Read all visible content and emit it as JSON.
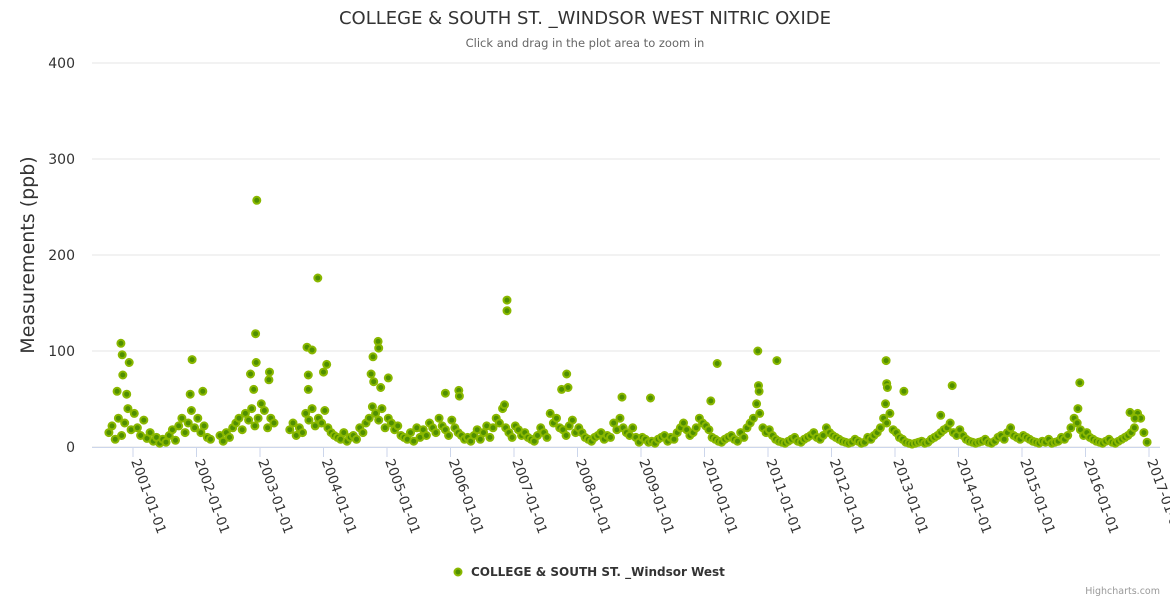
{
  "chart_data": {
    "type": "scatter",
    "title": "COLLEGE & SOUTH ST. _WINDSOR WEST NITRIC OXIDE",
    "subtitle": "Click and drag in the plot area to zoom in",
    "xlabel": "",
    "ylabel": "Measurements (ppb)",
    "ylim": [
      0,
      400
    ],
    "xlim": [
      2000.4,
      2017.2
    ],
    "yticks": [
      "0",
      "100",
      "200",
      "300",
      "400"
    ],
    "xticks": [
      "2001-01-01",
      "2002-01-01",
      "2003-01-01",
      "2004-01-01",
      "2005-01-01",
      "2006-01-01",
      "2007-01-01",
      "2008-01-01",
      "2009-01-01",
      "2010-01-01",
      "2011-01-01",
      "2012-01-01",
      "2013-01-01",
      "2014-01-01",
      "2015-01-01",
      "2016-01-01",
      "2017-01-01"
    ],
    "grid": true,
    "legend": {
      "position": "bottom-center",
      "entries": [
        "COLLEGE & SOUTH ST. _Windsor West"
      ]
    },
    "credits": "Highcharts.com",
    "colors": {
      "marker_fill": "#4f8f00",
      "marker_stroke": "#8ab800",
      "grid": "#e6e6e6",
      "axis": "#ccd6eb"
    },
    "series": [
      {
        "name": "COLLEGE & SOUTH ST. _Windsor West",
        "regular": {
          "x_start": 2000.62,
          "x_step": 0.05,
          "values": [
            15,
            22,
            8,
            30,
            12,
            25,
            40,
            18,
            35,
            20,
            12,
            28,
            9,
            15,
            6,
            10,
            4,
            8,
            5,
            12,
            18,
            7,
            22,
            30,
            15,
            25,
            38,
            20,
            30,
            15,
            22,
            10,
            8,
            null,
            null,
            12,
            6,
            15,
            10,
            20,
            25,
            30,
            18,
            35,
            28,
            40,
            22,
            30,
            45,
            38,
            20,
            30,
            25,
            null,
            null,
            null,
            null,
            18,
            25,
            12,
            20,
            15,
            35,
            28,
            40,
            22,
            30,
            25,
            38,
            20,
            15,
            12,
            10,
            8,
            15,
            6,
            10,
            12,
            8,
            20,
            15,
            25,
            30,
            42,
            35,
            28,
            40,
            20,
            30,
            25,
            18,
            22,
            12,
            10,
            8,
            15,
            6,
            20,
            10,
            18,
            12,
            25,
            20,
            15,
            30,
            22,
            18,
            12,
            28,
            20,
            15,
            12,
            8,
            10,
            6,
            12,
            18,
            8,
            15,
            22,
            10,
            20,
            30,
            25,
            40,
            20,
            15,
            10,
            22,
            18,
            12,
            15,
            10,
            8,
            6,
            12,
            20,
            15,
            10,
            35,
            25,
            30,
            20,
            18,
            12,
            22,
            28,
            15,
            20,
            15,
            10,
            8,
            6,
            10,
            12,
            15,
            8,
            12,
            10,
            25,
            18,
            30,
            20,
            15,
            12,
            20,
            10,
            5,
            10,
            8,
            5,
            6,
            4,
            8,
            10,
            12,
            6,
            10,
            8,
            15,
            20,
            25,
            18,
            12,
            15,
            20,
            30,
            25,
            22,
            18,
            10,
            8,
            6,
            5,
            8,
            10,
            12,
            8,
            6,
            15,
            10,
            20,
            25,
            30,
            45,
            35,
            20,
            15,
            18,
            12,
            8,
            6,
            5,
            4,
            6,
            8,
            10,
            6,
            5,
            8,
            10,
            12,
            15,
            10,
            8,
            12,
            20,
            15,
            12,
            10,
            8,
            6,
            5,
            4,
            5,
            8,
            6,
            4,
            5,
            10,
            8,
            12,
            15,
            20,
            30,
            25,
            35,
            18,
            15,
            10,
            8,
            5,
            4,
            3,
            4,
            5,
            6,
            4,
            5,
            8,
            10,
            12,
            15,
            18,
            20,
            25,
            15,
            12,
            18,
            12,
            8,
            6,
            5,
            4,
            5,
            6,
            8,
            5,
            4,
            6,
            10,
            12,
            8,
            15,
            20,
            12,
            10,
            8,
            12,
            10,
            8,
            6,
            5,
            4,
            6,
            5,
            8,
            4,
            5,
            6,
            10,
            8,
            12,
            20,
            30,
            25,
            18,
            12,
            15,
            10,
            8,
            6,
            5,
            4,
            6,
            8,
            5,
            4,
            6,
            8,
            10,
            12,
            15,
            20,
            35,
            30,
            15,
            5
          ]
        },
        "points": [
          [
            2000.81,
            108
          ],
          [
            2000.83,
            96
          ],
          [
            2000.84,
            75
          ],
          [
            2000.94,
            88
          ],
          [
            2000.75,
            58
          ],
          [
            2000.9,
            55
          ],
          [
            2001.93,
            91
          ],
          [
            2001.9,
            55
          ],
          [
            2002.1,
            58
          ],
          [
            2002.95,
            257
          ],
          [
            2002.93,
            118
          ],
          [
            2002.94,
            88
          ],
          [
            2002.85,
            76
          ],
          [
            2003.15,
            78
          ],
          [
            2003.14,
            70
          ],
          [
            2002.9,
            60
          ],
          [
            2003.74,
            104
          ],
          [
            2003.82,
            101
          ],
          [
            2003.91,
            176
          ],
          [
            2004.05,
            86
          ],
          [
            2004.0,
            78
          ],
          [
            2003.76,
            75
          ],
          [
            2003.76,
            60
          ],
          [
            2004.86,
            110
          ],
          [
            2004.87,
            103
          ],
          [
            2004.78,
            94
          ],
          [
            2004.75,
            76
          ],
          [
            2004.9,
            62
          ],
          [
            2005.02,
            72
          ],
          [
            2004.79,
            68
          ],
          [
            2005.92,
            56
          ],
          [
            2006.13,
            59
          ],
          [
            2006.14,
            53
          ],
          [
            2006.89,
            153
          ],
          [
            2006.89,
            142
          ],
          [
            2006.85,
            44
          ],
          [
            2007.83,
            76
          ],
          [
            2007.85,
            62
          ],
          [
            2007.75,
            60
          ],
          [
            2008.7,
            52
          ],
          [
            2009.15,
            51
          ],
          [
            2010.2,
            87
          ],
          [
            2010.1,
            48
          ],
          [
            2010.84,
            100
          ],
          [
            2010.85,
            64
          ],
          [
            2010.86,
            58
          ],
          [
            2011.14,
            90
          ],
          [
            2012.86,
            90
          ],
          [
            2012.87,
            66
          ],
          [
            2012.88,
            62
          ],
          [
            2012.85,
            45
          ],
          [
            2013.14,
            58
          ],
          [
            2013.9,
            64
          ],
          [
            2013.72,
            33
          ],
          [
            2015.91,
            67
          ],
          [
            2015.88,
            40
          ],
          [
            2016.7,
            36
          ],
          [
            2016.78,
            30
          ]
        ]
      }
    ]
  }
}
